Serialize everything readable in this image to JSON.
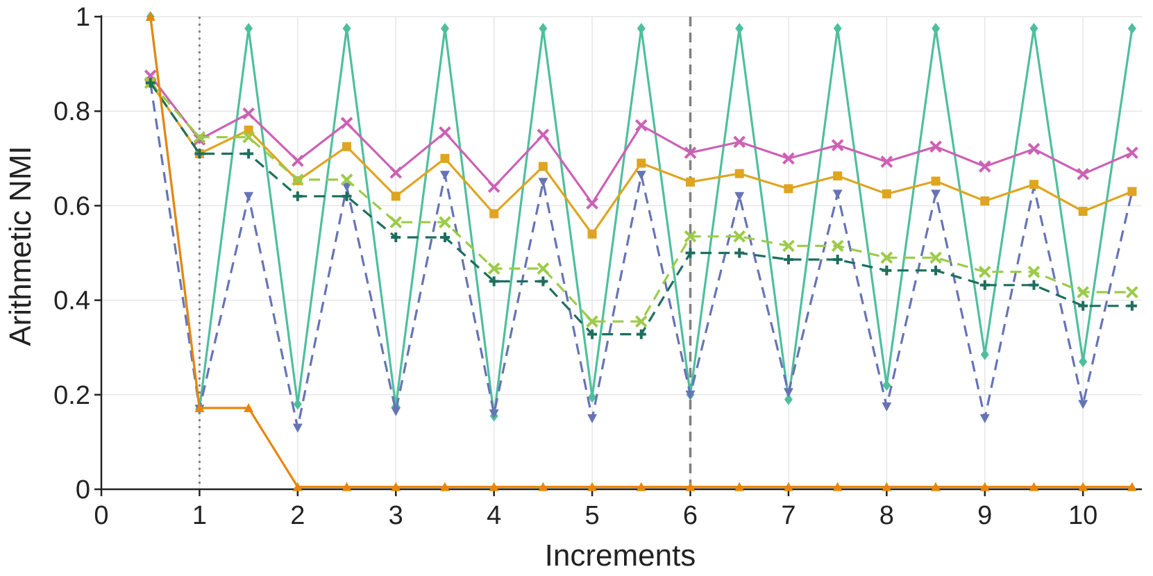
{
  "chart_data": {
    "type": "line",
    "xlabel": "Increments",
    "ylabel": "Arithmetic NMI",
    "xlim": [
      0,
      10.6
    ],
    "ylim": [
      0,
      1
    ],
    "x_ticks": [
      "0",
      "1",
      "2",
      "3",
      "4",
      "5",
      "6",
      "7",
      "8",
      "9",
      "10"
    ],
    "y_ticks": [
      "0",
      "0.2",
      "0.4",
      "0.6",
      "0.8",
      "1"
    ],
    "grid": true,
    "vertical_markers": [
      {
        "x": 1,
        "style": "dotted"
      },
      {
        "x": 6,
        "style": "dashed"
      }
    ],
    "series": [
      {
        "name": "teal-diamond",
        "color": "#4ebf9c",
        "dash": "solid",
        "marker": "diamond",
        "x": [
          0.5,
          1,
          1.5,
          2,
          2.5,
          3,
          3.5,
          4,
          4.5,
          5,
          5.5,
          6,
          6.5,
          7,
          7.5,
          8,
          8.5,
          9,
          9.5,
          10,
          10.5
        ],
        "values": [
          1.0,
          0.17,
          0.975,
          0.18,
          0.975,
          0.175,
          0.975,
          0.155,
          0.975,
          0.195,
          0.975,
          0.2,
          0.975,
          0.19,
          0.975,
          0.22,
          0.975,
          0.285,
          0.975,
          0.27,
          0.975
        ]
      },
      {
        "name": "blue-triangle-down",
        "color": "#6673b6",
        "dash": "dashed",
        "marker": "tri-down",
        "x": [
          0.5,
          1,
          1.5,
          2,
          2.5,
          3,
          3.5,
          4,
          4.5,
          5,
          5.5,
          6,
          6.5,
          7,
          7.5,
          8,
          8.5,
          9,
          9.5,
          10,
          10.5
        ],
        "values": [
          0.86,
          0.17,
          0.62,
          0.13,
          0.64,
          0.165,
          0.665,
          0.16,
          0.65,
          0.15,
          0.665,
          0.2,
          0.62,
          0.205,
          0.625,
          0.175,
          0.625,
          0.15,
          0.64,
          0.18,
          0.63
        ]
      },
      {
        "name": "magenta-x",
        "color": "#cc61b5",
        "dash": "solid",
        "marker": "x",
        "x": [
          0.5,
          1,
          1.5,
          2,
          2.5,
          3,
          3.5,
          4,
          4.5,
          5,
          5.5,
          6,
          6.5,
          7,
          7.5,
          8,
          8.5,
          9,
          9.5,
          10,
          10.5
        ],
        "values": [
          0.875,
          0.74,
          0.795,
          0.695,
          0.775,
          0.67,
          0.755,
          0.64,
          0.75,
          0.605,
          0.77,
          0.712,
          0.735,
          0.7,
          0.728,
          0.693,
          0.725,
          0.683,
          0.72,
          0.667,
          0.712
        ]
      },
      {
        "name": "gold-square",
        "color": "#dfa520",
        "dash": "solid",
        "marker": "square",
        "x": [
          0.5,
          1,
          1.5,
          2,
          2.5,
          3,
          3.5,
          4,
          4.5,
          5,
          5.5,
          6,
          6.5,
          7,
          7.5,
          8,
          8.5,
          9,
          9.5,
          10,
          10.5
        ],
        "values": [
          0.86,
          0.71,
          0.76,
          0.653,
          0.725,
          0.62,
          0.7,
          0.583,
          0.683,
          0.54,
          0.69,
          0.65,
          0.668,
          0.636,
          0.663,
          0.625,
          0.652,
          0.61,
          0.645,
          0.588,
          0.63
        ]
      },
      {
        "name": "lime-x-dashed",
        "color": "#9ccb49",
        "dash": "dashed",
        "marker": "x",
        "x": [
          0.5,
          1,
          1.5,
          2,
          2.5,
          3,
          3.5,
          4,
          4.5,
          5,
          5.5,
          6,
          6.5,
          7,
          7.5,
          8,
          8.5,
          9,
          9.5,
          10,
          10.5
        ],
        "values": [
          0.86,
          0.745,
          0.745,
          0.655,
          0.655,
          0.565,
          0.565,
          0.467,
          0.467,
          0.355,
          0.355,
          0.535,
          0.535,
          0.515,
          0.515,
          0.49,
          0.49,
          0.46,
          0.46,
          0.417,
          0.417
        ]
      },
      {
        "name": "darkgreen-plus",
        "color": "#1e6e5e",
        "dash": "dashed",
        "marker": "plus",
        "x": [
          0.5,
          1,
          1.5,
          2,
          2.5,
          3,
          3.5,
          4,
          4.5,
          5,
          5.5,
          6,
          6.5,
          7,
          7.5,
          8,
          8.5,
          9,
          9.5,
          10,
          10.5
        ],
        "values": [
          0.86,
          0.71,
          0.71,
          0.62,
          0.62,
          0.533,
          0.533,
          0.44,
          0.44,
          0.328,
          0.328,
          0.5,
          0.5,
          0.486,
          0.486,
          0.463,
          0.463,
          0.432,
          0.432,
          0.388,
          0.388
        ]
      },
      {
        "name": "orange-triangle-up",
        "color": "#e8860c",
        "dash": "solid",
        "marker": "tri-up",
        "x": [
          0.5,
          1,
          1.5,
          2,
          2.5,
          3,
          3.5,
          4,
          4.5,
          5,
          5.5,
          6,
          6.5,
          7,
          7.5,
          8,
          8.5,
          9,
          9.5,
          10,
          10.5
        ],
        "values": [
          1.0,
          0.172,
          0.172,
          0.005,
          0.005,
          0.005,
          0.005,
          0.005,
          0.005,
          0.005,
          0.005,
          0.005,
          0.005,
          0.005,
          0.005,
          0.005,
          0.005,
          0.005,
          0.005,
          0.005,
          0.005
        ]
      }
    ]
  }
}
